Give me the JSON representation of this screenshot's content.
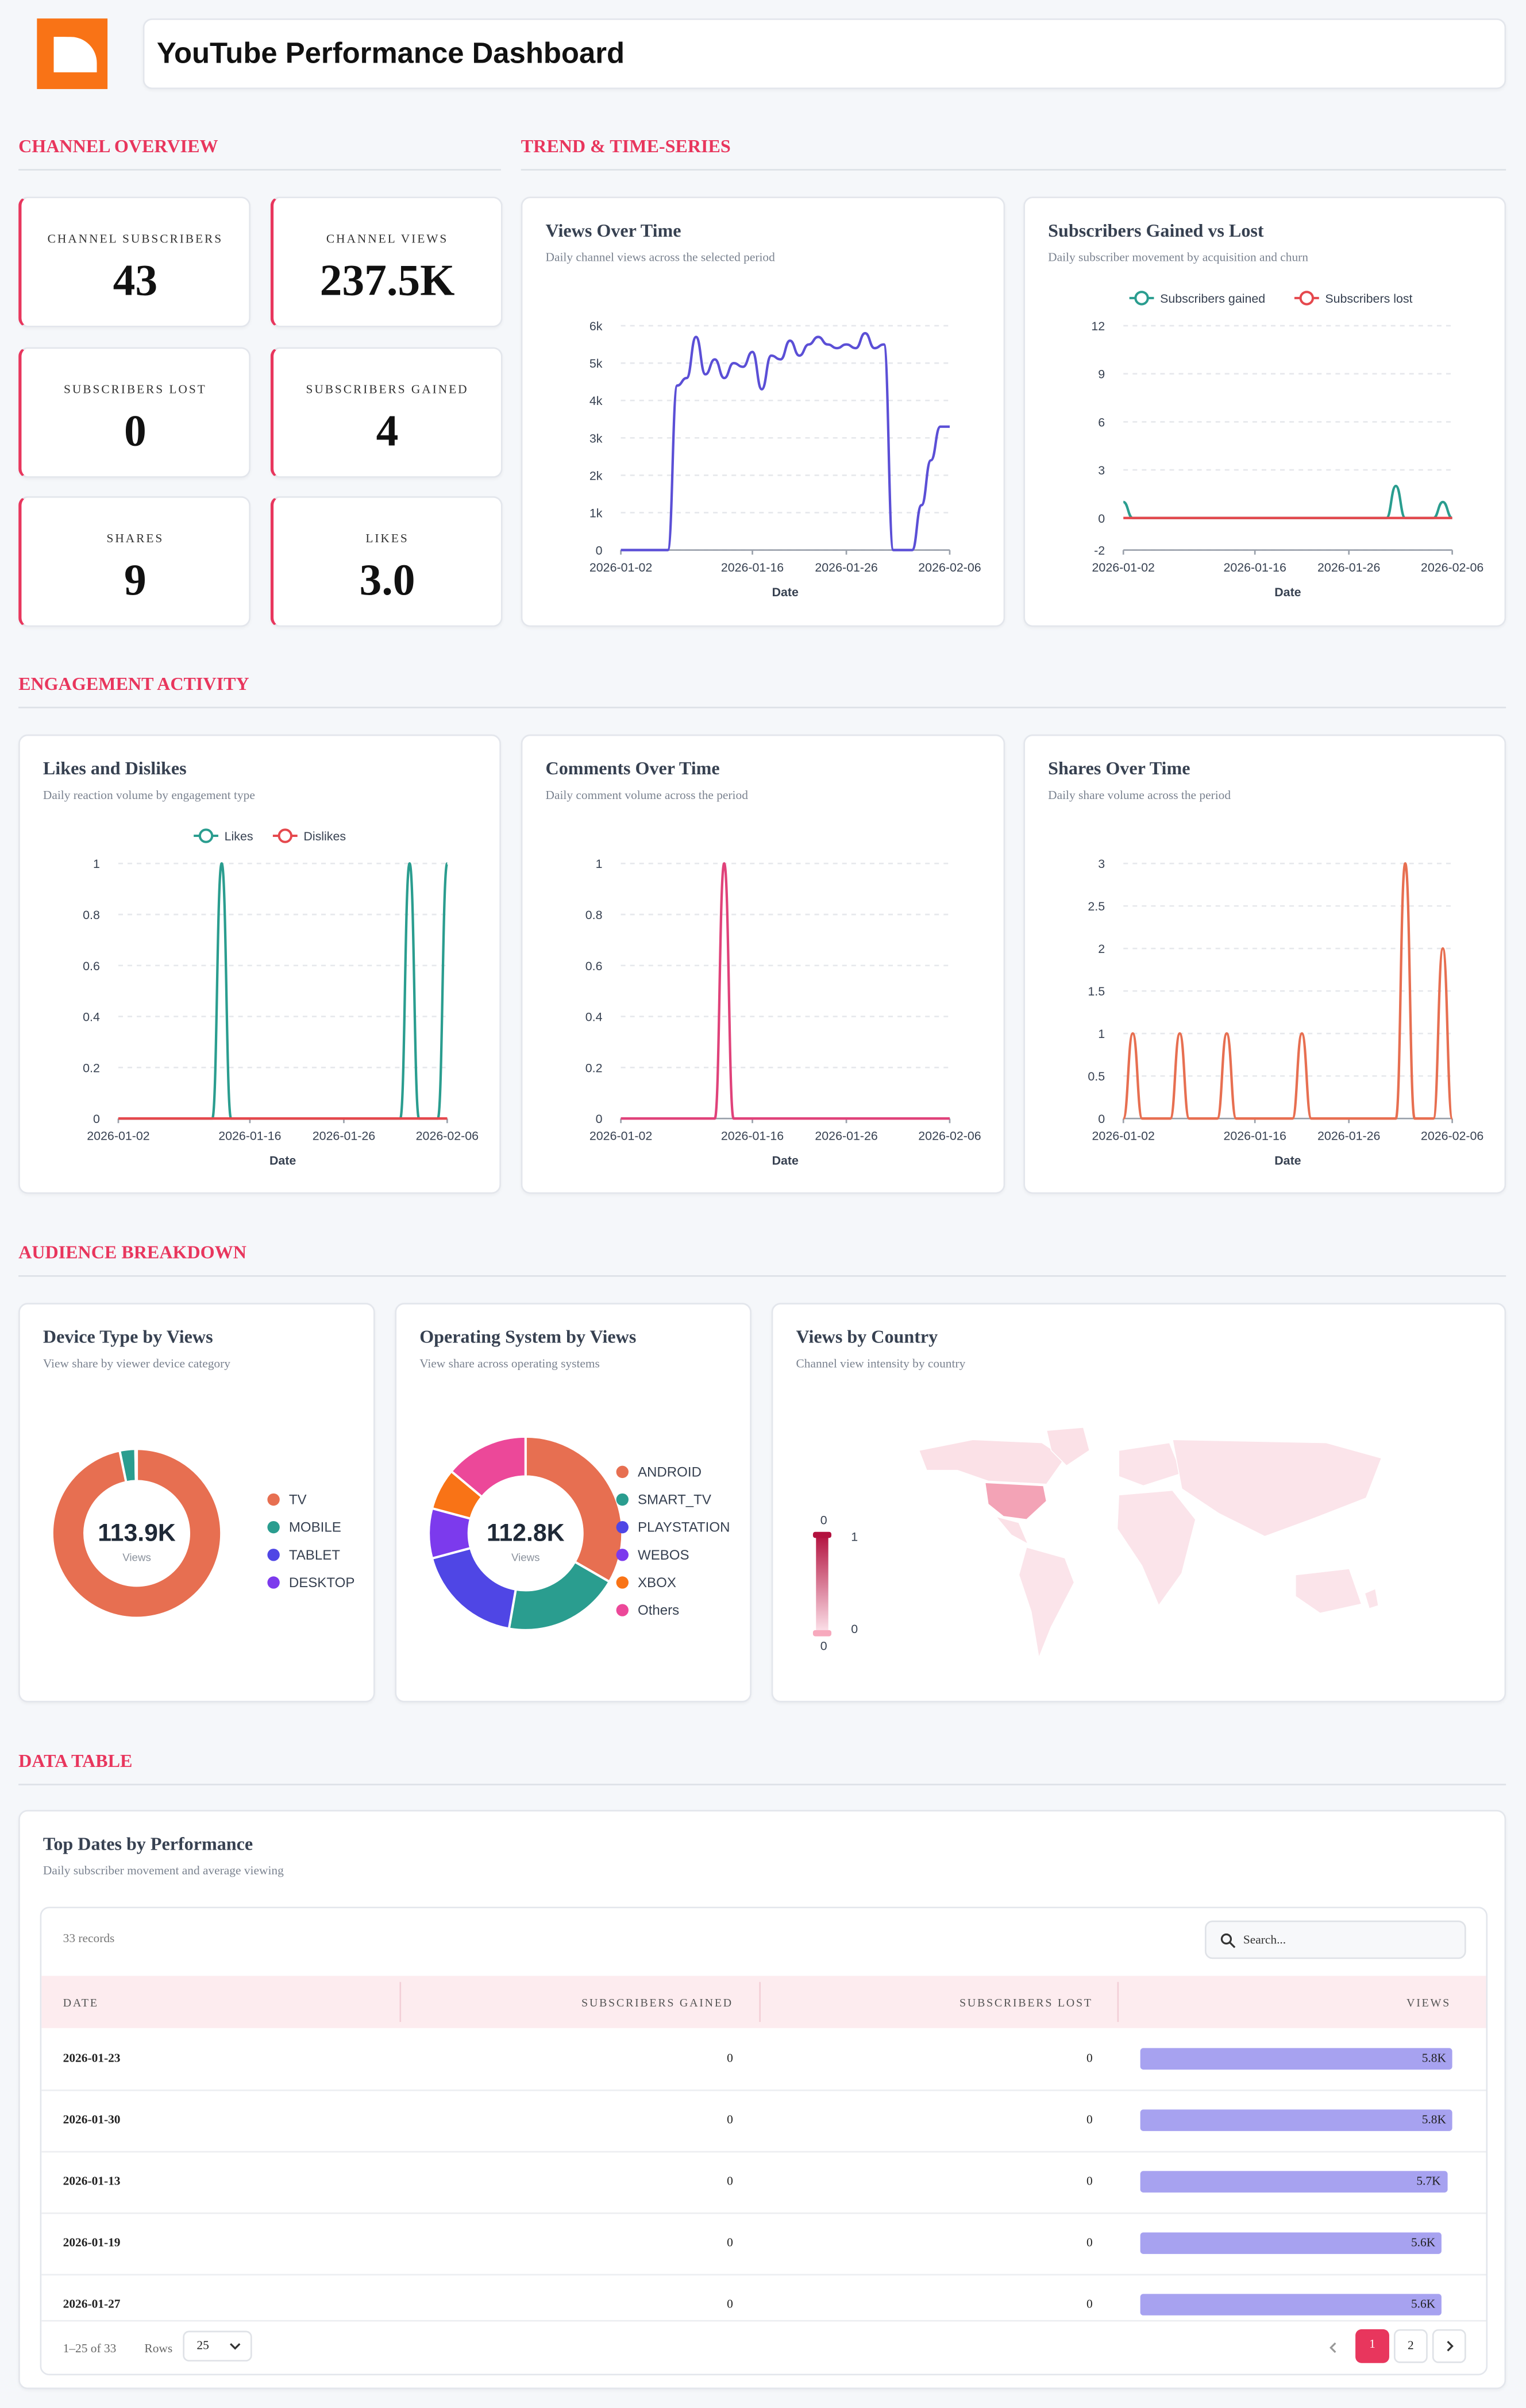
{
  "header": {
    "title": "YouTube Performance Dashboard"
  },
  "sections": [
    "CHANNEL OVERVIEW",
    "TREND & TIME-SERIES",
    "ENGAGEMENT ACTIVITY",
    "AUDIENCE BREAKDOWN",
    "DATA TABLE"
  ],
  "kpis": [
    {
      "label": "CHANNEL SUBSCRIBERS",
      "value": 43
    },
    {
      "label": "CHANNEL VIEWS",
      "value": 237500,
      "value_label": "237.5K"
    },
    {
      "label": "SUBSCRIBERS LOST",
      "value": 0
    },
    {
      "label": "SUBSCRIBERS GAINED",
      "value": 4
    },
    {
      "label": "SHARES",
      "value": 9
    },
    {
      "label": "LIKES",
      "value": 3,
      "value_label": "3.0"
    }
  ],
  "chart_data": [
    {
      "type": "line",
      "title": "Views Over Time",
      "subtitle": "Daily channel views across the selected period",
      "x_label": "Date",
      "x": [
        "2026-01-02",
        "2026-01-03",
        "2026-01-04",
        "2026-01-05",
        "2026-01-06",
        "2026-01-07",
        "2026-01-08",
        "2026-01-09",
        "2026-01-10",
        "2026-01-11",
        "2026-01-12",
        "2026-01-13",
        "2026-01-14",
        "2026-01-15",
        "2026-01-16",
        "2026-01-17",
        "2026-01-18",
        "2026-01-19",
        "2026-01-20",
        "2026-01-21",
        "2026-01-22",
        "2026-01-23",
        "2026-01-24",
        "2026-01-25",
        "2026-01-26",
        "2026-01-27",
        "2026-01-28",
        "2026-01-29",
        "2026-01-30",
        "2026-01-31",
        "2026-02-01",
        "2026-02-02",
        "2026-02-03",
        "2026-02-04",
        "2026-02-05",
        "2026-02-06"
      ],
      "values": [
        0,
        0,
        0,
        0,
        0,
        0,
        4400,
        4600,
        5700,
        4700,
        5100,
        4600,
        5000,
        4900,
        5300,
        4300,
        5200,
        5100,
        5600,
        5200,
        5500,
        5700,
        5500,
        5400,
        5500,
        5400,
        5800,
        5400,
        5500,
        0,
        0,
        0,
        1200,
        2400,
        3300,
        3300
      ],
      "color": "#5b4fd6",
      "ylim": [
        0,
        6000
      ],
      "yticks": [
        0,
        {
          "value": 1000,
          "label": "1k"
        },
        {
          "value": 2000,
          "label": "2k"
        },
        {
          "value": 3000,
          "label": "3k"
        },
        {
          "value": 4000,
          "label": "4k"
        },
        {
          "value": 5000,
          "label": "5k"
        },
        {
          "value": 6000,
          "label": "6k"
        }
      ],
      "xticks": [
        "2026-01-02",
        "2026-01-16",
        "2026-01-26",
        "2026-02-06"
      ],
      "grid": true
    },
    {
      "type": "line",
      "title": "Subscribers Gained vs Lost",
      "subtitle": "Daily subscriber movement by acquisition and churn",
      "x_label": "Date",
      "legend": "top",
      "x": [
        "2026-01-02",
        "2026-01-03",
        "2026-01-04",
        "2026-01-05",
        "2026-01-06",
        "2026-01-07",
        "2026-01-08",
        "2026-01-09",
        "2026-01-10",
        "2026-01-11",
        "2026-01-12",
        "2026-01-13",
        "2026-01-14",
        "2026-01-15",
        "2026-01-16",
        "2026-01-17",
        "2026-01-18",
        "2026-01-19",
        "2026-01-20",
        "2026-01-21",
        "2026-01-22",
        "2026-01-23",
        "2026-01-24",
        "2026-01-25",
        "2026-01-26",
        "2026-01-27",
        "2026-01-28",
        "2026-01-29",
        "2026-01-30",
        "2026-01-31",
        "2026-02-01",
        "2026-02-02",
        "2026-02-03",
        "2026-02-04",
        "2026-02-05",
        "2026-02-06"
      ],
      "series": [
        {
          "name": "Subscribers gained",
          "color": "#2a9d8f",
          "values": [
            1,
            0,
            0,
            0,
            0,
            0,
            0,
            0,
            0,
            0,
            0,
            0,
            0,
            0,
            0,
            0,
            0,
            0,
            0,
            0,
            0,
            0,
            0,
            0,
            0,
            0,
            0,
            0,
            0,
            2,
            0,
            0,
            0,
            0,
            1,
            0
          ]
        },
        {
          "name": "Subscribers lost",
          "color": "#e5484d",
          "values": [
            0,
            0,
            0,
            0,
            0,
            0,
            0,
            0,
            0,
            0,
            0,
            0,
            0,
            0,
            0,
            0,
            0,
            0,
            0,
            0,
            0,
            0,
            0,
            0,
            0,
            0,
            0,
            0,
            0,
            0,
            0,
            0,
            0,
            0,
            0,
            0
          ]
        }
      ],
      "ylim": [
        -2,
        12
      ],
      "yticks": [
        -2,
        0,
        3,
        6,
        9,
        12
      ],
      "xticks": [
        "2026-01-02",
        "2026-01-16",
        "2026-01-26",
        "2026-02-06"
      ],
      "grid": true
    },
    {
      "type": "line",
      "title": "Likes and Dislikes",
      "subtitle": "Daily reaction volume by engagement type",
      "x_label": "Date",
      "legend": "top",
      "x": [
        "2026-01-02",
        "2026-01-03",
        "2026-01-04",
        "2026-01-05",
        "2026-01-06",
        "2026-01-07",
        "2026-01-08",
        "2026-01-09",
        "2026-01-10",
        "2026-01-11",
        "2026-01-12",
        "2026-01-13",
        "2026-01-14",
        "2026-01-15",
        "2026-01-16",
        "2026-01-17",
        "2026-01-18",
        "2026-01-19",
        "2026-01-20",
        "2026-01-21",
        "2026-01-22",
        "2026-01-23",
        "2026-01-24",
        "2026-01-25",
        "2026-01-26",
        "2026-01-27",
        "2026-01-28",
        "2026-01-29",
        "2026-01-30",
        "2026-01-31",
        "2026-02-01",
        "2026-02-02",
        "2026-02-03",
        "2026-02-04",
        "2026-02-05",
        "2026-02-06"
      ],
      "series": [
        {
          "name": "Likes",
          "color": "#2a9d8f",
          "values": [
            0,
            0,
            0,
            0,
            0,
            0,
            0,
            0,
            0,
            0,
            0,
            1,
            0,
            0,
            0,
            0,
            0,
            0,
            0,
            0,
            0,
            0,
            0,
            0,
            0,
            0,
            0,
            0,
            0,
            0,
            0,
            1,
            0,
            0,
            0,
            1
          ]
        },
        {
          "name": "Dislikes",
          "color": "#e5484d",
          "values": [
            0,
            0,
            0,
            0,
            0,
            0,
            0,
            0,
            0,
            0,
            0,
            0,
            0,
            0,
            0,
            0,
            0,
            0,
            0,
            0,
            0,
            0,
            0,
            0,
            0,
            0,
            0,
            0,
            0,
            0,
            0,
            0,
            0,
            0,
            0,
            0
          ]
        }
      ],
      "ylim": [
        0,
        1
      ],
      "yticks": [
        0,
        0.2,
        0.4,
        0.6,
        0.8,
        1
      ],
      "xticks": [
        "2026-01-02",
        "2026-01-16",
        "2026-01-26",
        "2026-02-06"
      ],
      "grid": true
    },
    {
      "type": "line",
      "title": "Comments Over Time",
      "subtitle": "Daily comment volume across the period",
      "x_label": "Date",
      "x": [
        "2026-01-02",
        "2026-01-03",
        "2026-01-04",
        "2026-01-05",
        "2026-01-06",
        "2026-01-07",
        "2026-01-08",
        "2026-01-09",
        "2026-01-10",
        "2026-01-11",
        "2026-01-12",
        "2026-01-13",
        "2026-01-14",
        "2026-01-15",
        "2026-01-16",
        "2026-01-17",
        "2026-01-18",
        "2026-01-19",
        "2026-01-20",
        "2026-01-21",
        "2026-01-22",
        "2026-01-23",
        "2026-01-24",
        "2026-01-25",
        "2026-01-26",
        "2026-01-27",
        "2026-01-28",
        "2026-01-29",
        "2026-01-30",
        "2026-01-31",
        "2026-02-01",
        "2026-02-02",
        "2026-02-03",
        "2026-02-04",
        "2026-02-05",
        "2026-02-06"
      ],
      "values": [
        0,
        0,
        0,
        0,
        0,
        0,
        0,
        0,
        0,
        0,
        0,
        1,
        0,
        0,
        0,
        0,
        0,
        0,
        0,
        0,
        0,
        0,
        0,
        0,
        0,
        0,
        0,
        0,
        0,
        0,
        0,
        0,
        0,
        0,
        0,
        0
      ],
      "color": "#e0427a",
      "ylim": [
        0,
        1
      ],
      "yticks": [
        0,
        0.2,
        0.4,
        0.6,
        0.8,
        1
      ],
      "xticks": [
        "2026-01-02",
        "2026-01-16",
        "2026-01-26",
        "2026-02-06"
      ],
      "grid": true
    },
    {
      "type": "line",
      "title": "Shares Over Time",
      "subtitle": "Daily share volume across the period",
      "x_label": "Date",
      "x": [
        "2026-01-02",
        "2026-01-03",
        "2026-01-04",
        "2026-01-05",
        "2026-01-06",
        "2026-01-07",
        "2026-01-08",
        "2026-01-09",
        "2026-01-10",
        "2026-01-11",
        "2026-01-12",
        "2026-01-13",
        "2026-01-14",
        "2026-01-15",
        "2026-01-16",
        "2026-01-17",
        "2026-01-18",
        "2026-01-19",
        "2026-01-20",
        "2026-01-21",
        "2026-01-22",
        "2026-01-23",
        "2026-01-24",
        "2026-01-25",
        "2026-01-26",
        "2026-01-27",
        "2026-01-28",
        "2026-01-29",
        "2026-01-30",
        "2026-01-31",
        "2026-02-01",
        "2026-02-02",
        "2026-02-03",
        "2026-02-04",
        "2026-02-05",
        "2026-02-06"
      ],
      "values": [
        0,
        1,
        0,
        0,
        0,
        0,
        1,
        0,
        0,
        0,
        0,
        1,
        0,
        0,
        0,
        0,
        0,
        0,
        0,
        1,
        0,
        0,
        0,
        0,
        0,
        0,
        0,
        0,
        0,
        0,
        3,
        0,
        0,
        0,
        2,
        0
      ],
      "color": "#e76f51",
      "ylim": [
        0,
        3
      ],
      "yticks": [
        0,
        0.5,
        1,
        1.5,
        2,
        2.5,
        3
      ],
      "xticks": [
        "2026-01-02",
        "2026-01-16",
        "2026-01-26",
        "2026-02-06"
      ],
      "grid": true
    },
    {
      "type": "donut",
      "title": "Device Type by Views",
      "subtitle": "View share by viewer device category",
      "center_label": "113.9K",
      "center_sublabel": "Views",
      "categories": [
        "TV",
        "MOBILE",
        "TABLET",
        "DESKTOP"
      ],
      "values": [
        110200,
        3400,
        200,
        100
      ],
      "colors": [
        "#e76f51",
        "#2a9d8f",
        "#4f46e5",
        "#7c3aed"
      ]
    },
    {
      "type": "donut",
      "title": "Operating System by Views",
      "subtitle": "View share across operating systems",
      "center_label": "112.8K",
      "center_sublabel": "Views",
      "categories": [
        "ANDROID",
        "SMART_TV",
        "PLAYSTATION",
        "WEBOS",
        "XBOX",
        "Others"
      ],
      "values": [
        37600,
        21900,
        20400,
        9400,
        7800,
        15700
      ],
      "colors": [
        "#e76f51",
        "#2a9d8f",
        "#4f46e5",
        "#7c3aed",
        "#f97316",
        "#ec4899"
      ]
    },
    {
      "type": "map",
      "title": "Views by Country",
      "subtitle": "Channel view intensity by country",
      "legend_labels": [
        "0",
        "1",
        "0",
        "0"
      ]
    }
  ],
  "table": {
    "title": "Top Dates by Performance",
    "subtitle": "Daily subscriber movement and average viewing",
    "record_count": "33 records",
    "search_placeholder": "Search...",
    "columns": [
      "DATE",
      "SUBSCRIBERS GAINED",
      "SUBSCRIBERS LOST",
      "VIEWS"
    ],
    "rows": [
      {
        "date": "2026-01-23",
        "gained": 0,
        "lost": 0,
        "views": 5800,
        "views_label": "5.8K"
      },
      {
        "date": "2026-01-30",
        "gained": 0,
        "lost": 0,
        "views": 5800,
        "views_label": "5.8K"
      },
      {
        "date": "2026-01-13",
        "gained": 0,
        "lost": 0,
        "views": 5700,
        "views_label": "5.7K"
      },
      {
        "date": "2026-01-19",
        "gained": 0,
        "lost": 0,
        "views": 5600,
        "views_label": "5.6K"
      },
      {
        "date": "2026-01-27",
        "gained": 0,
        "lost": 0,
        "views": 5600,
        "views_label": "5.6K"
      }
    ],
    "range_label": "1–25 of 33",
    "rows_label": "Rows",
    "rows_per_page": 25,
    "pages": [
      1,
      2
    ]
  }
}
